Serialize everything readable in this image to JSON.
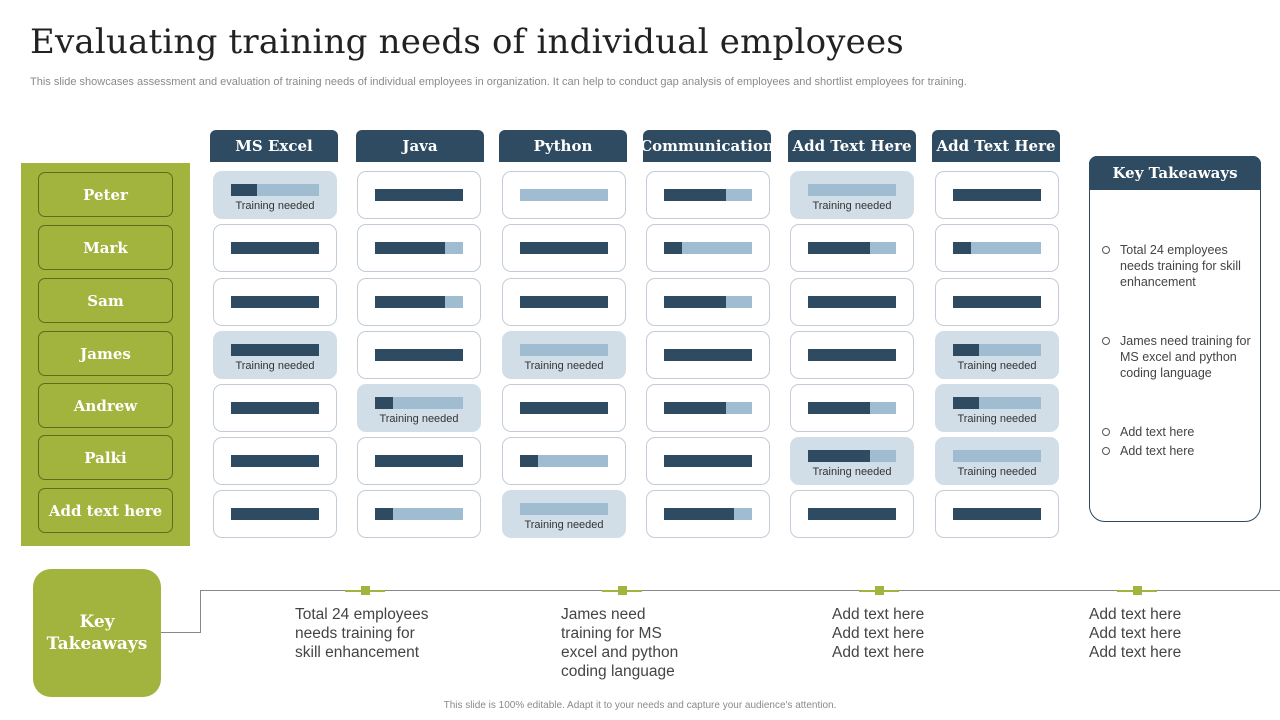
{
  "title": "Evaluating training needs of individual employees",
  "subtitle": "This slide showcases assessment and evaluation of training needs of individual employees in organization. It can help to conduct gap analysis of employees and shortlist employees for training.",
  "columns": [
    "MS Excel",
    "Java",
    "Python",
    "Communication",
    "Add Text Here",
    "Add Text Here"
  ],
  "employees": [
    "Peter",
    "Mark",
    "Sam",
    "James",
    "Andrew",
    "Palki",
    "Add text here"
  ],
  "training_needed_label": "Training needed",
  "grid": [
    [
      {
        "level": 0.3,
        "need": true
      },
      {
        "level": 1.0,
        "need": false
      },
      {
        "level": 0.0,
        "need": false
      },
      {
        "level": 0.7,
        "need": false
      },
      {
        "level": 0.0,
        "need": true
      },
      {
        "level": 1.0,
        "need": false
      }
    ],
    [
      {
        "level": 1.0,
        "need": false
      },
      {
        "level": 0.8,
        "need": false
      },
      {
        "level": 1.0,
        "need": false
      },
      {
        "level": 0.2,
        "need": false
      },
      {
        "level": 0.7,
        "need": false
      },
      {
        "level": 0.2,
        "need": false
      }
    ],
    [
      {
        "level": 1.0,
        "need": false
      },
      {
        "level": 0.8,
        "need": false
      },
      {
        "level": 1.0,
        "need": false
      },
      {
        "level": 0.7,
        "need": false
      },
      {
        "level": 1.0,
        "need": false
      },
      {
        "level": 1.0,
        "need": false
      }
    ],
    [
      {
        "level": 1.0,
        "need": true
      },
      {
        "level": 1.0,
        "need": false
      },
      {
        "level": 0.0,
        "need": true
      },
      {
        "level": 1.0,
        "need": false
      },
      {
        "level": 1.0,
        "need": false
      },
      {
        "level": 0.3,
        "need": true
      }
    ],
    [
      {
        "level": 1.0,
        "need": false
      },
      {
        "level": 0.2,
        "need": true
      },
      {
        "level": 1.0,
        "need": false
      },
      {
        "level": 0.7,
        "need": false
      },
      {
        "level": 0.7,
        "need": false
      },
      {
        "level": 0.3,
        "need": true
      }
    ],
    [
      {
        "level": 1.0,
        "need": false
      },
      {
        "level": 1.0,
        "need": false
      },
      {
        "level": 0.2,
        "need": false
      },
      {
        "level": 1.0,
        "need": false
      },
      {
        "level": 0.7,
        "need": true
      },
      {
        "level": 0.0,
        "need": true
      }
    ],
    [
      {
        "level": 1.0,
        "need": false
      },
      {
        "level": 0.2,
        "need": false
      },
      {
        "level": 0.0,
        "need": true
      },
      {
        "level": 0.8,
        "need": false
      },
      {
        "level": 1.0,
        "need": false
      },
      {
        "level": 1.0,
        "need": false
      }
    ]
  ],
  "key_takeaways_panel": {
    "heading": "Key Takeaways",
    "items": [
      "Total 24 employees needs training for skill enhancement",
      "James need training for MS excel and python coding language",
      "Add text here",
      "Add text here"
    ]
  },
  "bottom": {
    "badge_line1": "Key",
    "badge_line2": "Takeaways",
    "items": [
      "Total 24 employees\nneeds training for\nskill enhancement",
      "James need\ntraining for MS\nexcel and python\ncoding language",
      "Add text here\nAdd text here\nAdd text here",
      "Add text here\nAdd text here\nAdd text here"
    ]
  },
  "footer": "This slide is 100% editable. Adapt it to your needs and capture your audience's attention.",
  "colors": {
    "navy": "#2e4b61",
    "olive": "#a2b43d",
    "light_blue": "#a0bcd0",
    "need_bg": "#d1dee8"
  }
}
